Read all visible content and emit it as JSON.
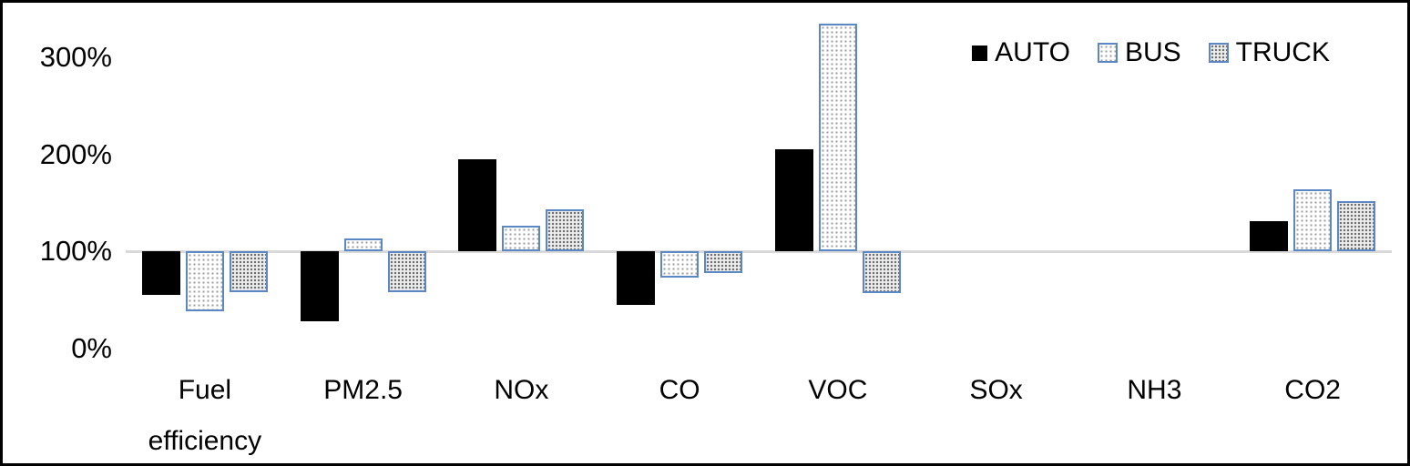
{
  "figure": {
    "kind": "grouped-bar-chart",
    "border_color": "#000000"
  },
  "chart_data": {
    "type": "bar",
    "title": "",
    "categories": [
      "Fuel efficiency",
      "PM2.5",
      "NOx",
      "CO",
      "VOC",
      "SOx",
      "NH3",
      "CO2"
    ],
    "category_display_labels": [
      "Fuel\nefficiency",
      "PM2.5",
      "NOx",
      "CO",
      "VOC",
      "SOx",
      "NH3",
      "CO2"
    ],
    "series": [
      {
        "name": "AUTO",
        "style": "solid-black",
        "values": [
          55,
          28,
          195,
          45,
          205,
          100,
          100,
          131
        ]
      },
      {
        "name": "BUS",
        "style": "dotted-white-blue-border",
        "values": [
          38,
          113,
          127,
          73,
          335,
          100,
          100,
          164
        ]
      },
      {
        "name": "TRUCK",
        "style": "dotted-gray-blue-border",
        "values": [
          58,
          58,
          143,
          78,
          57,
          100,
          100,
          152
        ]
      }
    ],
    "baseline": 100,
    "baseline_note": "bars are drawn from the 100% reference line; categories with no visible bar equal 100%",
    "ylim": [
      0,
      350
    ],
    "yticks": [
      0,
      100,
      200,
      300
    ],
    "ytick_labels": [
      "0%",
      "100%",
      "200%",
      "300%"
    ],
    "xlabel": "",
    "ylabel": "",
    "grid": "baseline-only",
    "legend_position": "top-right",
    "colors": {
      "auto_fill": "#000000",
      "bus_border": "#5b87c5",
      "truck_border": "#5b87c5",
      "baseline_line": "#d9d9d9"
    }
  },
  "legend": {
    "items": [
      "AUTO",
      "BUS",
      "TRUCK"
    ]
  }
}
